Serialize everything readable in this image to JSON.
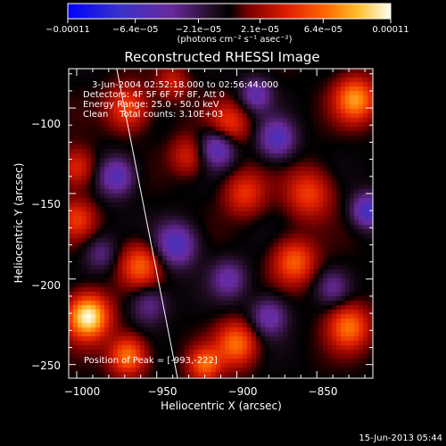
{
  "chart_data": {
    "type": "heatmap",
    "title": "Reconstructed RHESSI Image",
    "xlabel": "Heliocentric X (arcsec)",
    "ylabel": "Heliocentric Y (arcsec)",
    "xlim": [
      -1005,
      -815
    ],
    "ylim": [
      -258,
      -77
    ],
    "xticks": [
      -1000,
      -950,
      -900,
      -850
    ],
    "yticks": [
      -100,
      -150,
      -200,
      -250
    ],
    "xtick_labels": [
      "−1000",
      "−950",
      "−900",
      "−850"
    ],
    "ytick_labels": [
      "−100",
      "−150",
      "−200",
      "−250"
    ],
    "colorbar": {
      "range": [
        -0.00011,
        0.00011
      ],
      "ticks": [
        -0.00011,
        -6.4e-05,
        -2.1e-05,
        2.1e-05,
        6.4e-05,
        0.00011
      ],
      "tick_labels": [
        "−0.00011",
        "−6.4e−05",
        "−2.1e−05",
        "2.1e−05",
        "6.4e−05",
        "0.00011"
      ],
      "units": "(photons cm⁻² s⁻¹ asec⁻²)"
    },
    "annotations": [
      "3-Jun-2004 02:52:18.000 to 02:56:44.000",
      "Detectors: 4F 5F 6F 7F 8F, Att 0",
      "Energy Range: 25.0 - 50.0 keV",
      "Clean    Total counts: 3.10E+03"
    ],
    "peak_label": "Position of Peak = [-993,-222]",
    "limb_line": [
      [
        -975,
        -77
      ],
      [
        -937,
        -258
      ]
    ],
    "blobs": [
      {
        "x": -993,
        "y": -222,
        "amp": 1.0,
        "s": 9
      },
      {
        "x": -968,
        "y": -245,
        "amp": 0.65,
        "s": 8
      },
      {
        "x": -960,
        "y": -192,
        "amp": 0.55,
        "s": 9
      },
      {
        "x": -900,
        "y": -238,
        "amp": 0.6,
        "s": 9
      },
      {
        "x": -920,
        "y": -250,
        "amp": 0.55,
        "s": 7
      },
      {
        "x": -830,
        "y": -228,
        "amp": 0.6,
        "s": 9
      },
      {
        "x": -826,
        "y": -95,
        "amp": 0.7,
        "s": 9
      },
      {
        "x": -864,
        "y": -190,
        "amp": 0.55,
        "s": 9
      },
      {
        "x": -855,
        "y": -150,
        "amp": 0.45,
        "s": 10
      },
      {
        "x": -895,
        "y": -150,
        "amp": 0.4,
        "s": 9
      },
      {
        "x": -905,
        "y": -110,
        "amp": 0.45,
        "s": 9
      },
      {
        "x": -968,
        "y": -100,
        "amp": 0.5,
        "s": 9
      },
      {
        "x": -1000,
        "y": -135,
        "amp": 0.4,
        "s": 8
      },
      {
        "x": -1000,
        "y": -165,
        "amp": 0.4,
        "s": 8
      },
      {
        "x": -930,
        "y": -128,
        "amp": 0.35,
        "s": 8
      },
      {
        "x": -940,
        "y": -85,
        "amp": 0.3,
        "s": 7
      },
      {
        "x": -975,
        "y": -140,
        "amp": -0.55,
        "s": 8
      },
      {
        "x": -912,
        "y": -123,
        "amp": -0.6,
        "s": 8
      },
      {
        "x": -875,
        "y": -118,
        "amp": -0.55,
        "s": 8
      },
      {
        "x": -888,
        "y": -92,
        "amp": -0.45,
        "s": 7
      },
      {
        "x": -938,
        "y": -180,
        "amp": -0.6,
        "s": 9
      },
      {
        "x": -905,
        "y": -200,
        "amp": -0.4,
        "s": 8
      },
      {
        "x": -880,
        "y": -222,
        "amp": -0.45,
        "s": 8
      },
      {
        "x": -955,
        "y": -215,
        "amp": -0.35,
        "s": 8
      },
      {
        "x": -818,
        "y": -160,
        "amp": -0.65,
        "s": 7
      },
      {
        "x": -840,
        "y": -205,
        "amp": -0.3,
        "s": 7
      },
      {
        "x": -985,
        "y": -185,
        "amp": -0.3,
        "s": 7
      }
    ]
  },
  "footer": {
    "date": "15-Jun-2013 05:44"
  }
}
